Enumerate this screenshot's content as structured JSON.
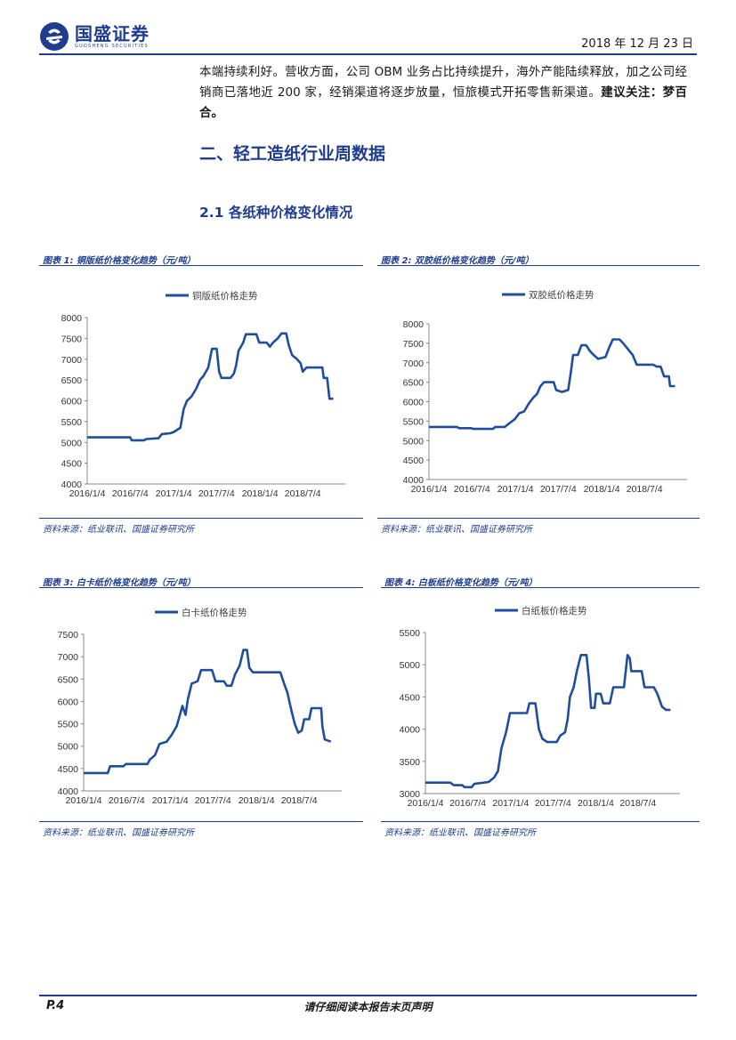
{
  "header": {
    "logo_cn": "国盛证券",
    "logo_en": "GUOSHENG SECURITIES",
    "date": "2018 年 12 月 23 日"
  },
  "body": {
    "para_normal": "本端持续利好。营收方面，公司 OBM 业务占比持续提升，海外产能陆续释放，加之公司经销商已落地近 200 家，经销渠道将逐步放量，恒旅模式开拓零售新渠道。",
    "para_bold": "建议关注：梦百合。"
  },
  "section": {
    "title": "二、轻工造纸行业周数据",
    "subtitle": "2.1 各纸种价格变化情况"
  },
  "figures": [
    {
      "caption": "图表 1:  铜版纸价格变化趋势（元/吨）",
      "source": "资料来源：纸业联讯、国盛证券研究所"
    },
    {
      "caption": "图表 2:  双胶纸价格变化趋势（元/吨）",
      "source": "资料来源：纸业联讯、国盛证券研究所"
    },
    {
      "caption": "图表 3:  白卡纸价格变化趋势（元/吨）",
      "source": "资料来源：纸业联讯、国盛证券研究所"
    },
    {
      "caption": "图表 4:  白板纸价格变化趋势（元/吨）",
      "source": "资料来源：纸业联讯、国盛证券研究所"
    }
  ],
  "chart_data": [
    {
      "type": "line",
      "legend": "铜版纸价格走势",
      "color": "#1e4e9c",
      "ylim": [
        4000,
        8000
      ],
      "yticks": [
        4000,
        4500,
        5000,
        5500,
        6000,
        6500,
        7000,
        7500,
        8000
      ],
      "xticks": [
        "2016/1/4",
        "2016/7/4",
        "2017/1/4",
        "2017/7/4",
        "2018/1/4",
        "2018/7/4"
      ],
      "xlim": [
        "2016-01-04",
        "2018-12-31"
      ],
      "points": [
        [
          "2016-01-04",
          5120
        ],
        [
          "2016-07-04",
          5120
        ],
        [
          "2016-07-10",
          5050
        ],
        [
          "2016-09-01",
          5050
        ],
        [
          "2016-09-10",
          5080
        ],
        [
          "2016-11-01",
          5100
        ],
        [
          "2016-11-15",
          5200
        ],
        [
          "2016-12-20",
          5220
        ],
        [
          "2017-01-04",
          5250
        ],
        [
          "2017-02-01",
          5350
        ],
        [
          "2017-02-15",
          5800
        ],
        [
          "2017-03-01",
          6000
        ],
        [
          "2017-03-20",
          6100
        ],
        [
          "2017-04-10",
          6300
        ],
        [
          "2017-04-25",
          6500
        ],
        [
          "2017-05-10",
          6600
        ],
        [
          "2017-05-30",
          6800
        ],
        [
          "2017-06-15",
          7250
        ],
        [
          "2017-07-05",
          7250
        ],
        [
          "2017-07-15",
          6700
        ],
        [
          "2017-07-25",
          6550
        ],
        [
          "2017-09-01",
          6550
        ],
        [
          "2017-09-15",
          6650
        ],
        [
          "2017-09-25",
          6850
        ],
        [
          "2017-10-05",
          7200
        ],
        [
          "2017-10-25",
          7400
        ],
        [
          "2017-11-05",
          7600
        ],
        [
          "2017-12-20",
          7600
        ],
        [
          "2018-01-01",
          7400
        ],
        [
          "2018-02-01",
          7400
        ],
        [
          "2018-02-15",
          7300
        ],
        [
          "2018-02-28",
          7400
        ],
        [
          "2018-03-20",
          7500
        ],
        [
          "2018-04-05",
          7620
        ],
        [
          "2018-04-25",
          7620
        ],
        [
          "2018-05-05",
          7350
        ],
        [
          "2018-05-20",
          7100
        ],
        [
          "2018-06-10",
          7000
        ],
        [
          "2018-06-25",
          6900
        ],
        [
          "2018-07-04",
          6700
        ],
        [
          "2018-07-20",
          6800
        ],
        [
          "2018-09-25",
          6800
        ],
        [
          "2018-10-01",
          6550
        ],
        [
          "2018-10-15",
          6550
        ],
        [
          "2018-10-25",
          6050
        ],
        [
          "2018-11-10",
          6050
        ]
      ]
    },
    {
      "type": "line",
      "legend": "双胶纸价格走势",
      "color": "#1e4e9c",
      "ylim": [
        4000,
        8000
      ],
      "yticks": [
        4000,
        4500,
        5000,
        5500,
        6000,
        6500,
        7000,
        7500,
        8000
      ],
      "xticks": [
        "2016/1/4",
        "2016/7/4",
        "2017/1/4",
        "2017/7/4",
        "2018/1/4",
        "2018/7/4"
      ],
      "xlim": [
        "2016-01-04",
        "2018-12-31"
      ],
      "points": [
        [
          "2016-01-04",
          5350
        ],
        [
          "2016-05-01",
          5350
        ],
        [
          "2016-05-10",
          5320
        ],
        [
          "2016-07-01",
          5320
        ],
        [
          "2016-07-10",
          5300
        ],
        [
          "2016-10-01",
          5300
        ],
        [
          "2016-10-10",
          5350
        ],
        [
          "2016-11-20",
          5350
        ],
        [
          "2016-12-10",
          5450
        ],
        [
          "2017-01-01",
          5550
        ],
        [
          "2017-01-20",
          5700
        ],
        [
          "2017-02-10",
          5750
        ],
        [
          "2017-03-01",
          5950
        ],
        [
          "2017-03-20",
          6100
        ],
        [
          "2017-04-05",
          6200
        ],
        [
          "2017-04-20",
          6400
        ],
        [
          "2017-05-05",
          6500
        ],
        [
          "2017-06-15",
          6500
        ],
        [
          "2017-06-25",
          6300
        ],
        [
          "2017-07-20",
          6250
        ],
        [
          "2017-08-15",
          6300
        ],
        [
          "2017-08-25",
          6700
        ],
        [
          "2017-09-05",
          7200
        ],
        [
          "2017-09-25",
          7200
        ],
        [
          "2017-10-10",
          7450
        ],
        [
          "2017-10-30",
          7450
        ],
        [
          "2017-11-15",
          7300
        ],
        [
          "2017-12-01",
          7200
        ],
        [
          "2017-12-20",
          7100
        ],
        [
          "2018-01-20",
          7150
        ],
        [
          "2018-02-05",
          7400
        ],
        [
          "2018-02-20",
          7600
        ],
        [
          "2018-03-20",
          7600
        ],
        [
          "2018-04-05",
          7500
        ],
        [
          "2018-04-25",
          7350
        ],
        [
          "2018-05-15",
          7200
        ],
        [
          "2018-06-01",
          6950
        ],
        [
          "2018-08-10",
          6950
        ],
        [
          "2018-08-25",
          6900
        ],
        [
          "2018-09-10",
          6900
        ],
        [
          "2018-09-25",
          6650
        ],
        [
          "2018-10-15",
          6650
        ],
        [
          "2018-10-20",
          6400
        ],
        [
          "2018-11-10",
          6400
        ]
      ]
    },
    {
      "type": "line",
      "legend": "白卡纸价格走势",
      "color": "#1e4e9c",
      "ylim": [
        4000,
        7500
      ],
      "yticks": [
        4000,
        4500,
        5000,
        5500,
        6000,
        6500,
        7000,
        7500
      ],
      "xticks": [
        "2016/1/4",
        "2016/7/4",
        "2017/1/4",
        "2017/7/4",
        "2018/1/4",
        "2018/7/4"
      ],
      "xlim": [
        "2016-01-04",
        "2018-12-31"
      ],
      "points": [
        [
          "2016-01-04",
          4400
        ],
        [
          "2016-04-15",
          4400
        ],
        [
          "2016-04-25",
          4550
        ],
        [
          "2016-06-20",
          4550
        ],
        [
          "2016-07-01",
          4600
        ],
        [
          "2016-09-30",
          4600
        ],
        [
          "2016-10-10",
          4700
        ],
        [
          "2016-11-01",
          4800
        ],
        [
          "2016-11-20",
          5050
        ],
        [
          "2016-12-20",
          5100
        ],
        [
          "2017-01-10",
          5250
        ],
        [
          "2017-02-01",
          5450
        ],
        [
          "2017-02-25",
          5900
        ],
        [
          "2017-03-10",
          5700
        ],
        [
          "2017-03-20",
          6050
        ],
        [
          "2017-04-05",
          6400
        ],
        [
          "2017-04-30",
          6450
        ],
        [
          "2017-05-15",
          6700
        ],
        [
          "2017-06-30",
          6700
        ],
        [
          "2017-07-15",
          6450
        ],
        [
          "2017-08-20",
          6450
        ],
        [
          "2017-09-01",
          6350
        ],
        [
          "2017-09-20",
          6350
        ],
        [
          "2017-10-05",
          6600
        ],
        [
          "2017-10-25",
          6800
        ],
        [
          "2017-11-10",
          7150
        ],
        [
          "2017-11-25",
          7150
        ],
        [
          "2017-12-05",
          6750
        ],
        [
          "2017-12-20",
          6650
        ],
        [
          "2018-04-15",
          6650
        ],
        [
          "2018-05-01",
          6400
        ],
        [
          "2018-05-15",
          6200
        ],
        [
          "2018-06-01",
          5800
        ],
        [
          "2018-06-15",
          5500
        ],
        [
          "2018-06-30",
          5300
        ],
        [
          "2018-07-15",
          5350
        ],
        [
          "2018-07-25",
          5600
        ],
        [
          "2018-08-15",
          5600
        ],
        [
          "2018-08-25",
          5850
        ],
        [
          "2018-10-05",
          5850
        ],
        [
          "2018-10-10",
          5450
        ],
        [
          "2018-10-20",
          5150
        ],
        [
          "2018-11-15",
          5100
        ]
      ]
    },
    {
      "type": "line",
      "legend": "白纸板价格走势",
      "color": "#1e4e9c",
      "ylim": [
        3000,
        5500
      ],
      "yticks": [
        3000,
        3500,
        4000,
        4500,
        5000,
        5500
      ],
      "xticks": [
        "2016/1/4",
        "2016/7/4",
        "2017/1/4",
        "2017/7/4",
        "2018/1/4",
        "2018/7/4"
      ],
      "xlim": [
        "2016-01-04",
        "2018-12-31"
      ],
      "points": [
        [
          "2016-01-04",
          3170
        ],
        [
          "2016-04-20",
          3170
        ],
        [
          "2016-05-05",
          3130
        ],
        [
          "2016-06-10",
          3130
        ],
        [
          "2016-06-20",
          3100
        ],
        [
          "2016-07-20",
          3100
        ],
        [
          "2016-08-01",
          3150
        ],
        [
          "2016-10-01",
          3180
        ],
        [
          "2016-10-25",
          3250
        ],
        [
          "2016-11-10",
          3350
        ],
        [
          "2016-11-25",
          3700
        ],
        [
          "2016-12-15",
          3950
        ],
        [
          "2017-01-01",
          4250
        ],
        [
          "2017-03-15",
          4250
        ],
        [
          "2017-03-25",
          4400
        ],
        [
          "2017-04-20",
          4400
        ],
        [
          "2017-05-05",
          4000
        ],
        [
          "2017-05-20",
          3850
        ],
        [
          "2017-06-10",
          3800
        ],
        [
          "2017-07-20",
          3800
        ],
        [
          "2017-08-05",
          3900
        ],
        [
          "2017-08-25",
          3950
        ],
        [
          "2017-09-05",
          4150
        ],
        [
          "2017-09-15",
          4500
        ],
        [
          "2017-10-01",
          4650
        ],
        [
          "2017-10-15",
          4900
        ],
        [
          "2017-11-01",
          5150
        ],
        [
          "2017-11-25",
          5150
        ],
        [
          "2017-12-05",
          4800
        ],
        [
          "2017-12-15",
          4330
        ],
        [
          "2017-12-30",
          4330
        ],
        [
          "2018-01-05",
          4550
        ],
        [
          "2018-01-25",
          4550
        ],
        [
          "2018-02-05",
          4400
        ],
        [
          "2018-03-05",
          4400
        ],
        [
          "2018-03-20",
          4650
        ],
        [
          "2018-05-05",
          4650
        ],
        [
          "2018-05-20",
          5150
        ],
        [
          "2018-05-30",
          5100
        ],
        [
          "2018-06-05",
          4900
        ],
        [
          "2018-07-20",
          4900
        ],
        [
          "2018-08-01",
          4650
        ],
        [
          "2018-09-10",
          4650
        ],
        [
          "2018-09-25",
          4550
        ],
        [
          "2018-10-05",
          4450
        ],
        [
          "2018-10-15",
          4350
        ],
        [
          "2018-11-01",
          4300
        ],
        [
          "2018-11-20",
          4300
        ]
      ]
    }
  ],
  "footer": {
    "page": "P.4",
    "note": "请仔细阅读本报告末页声明"
  }
}
